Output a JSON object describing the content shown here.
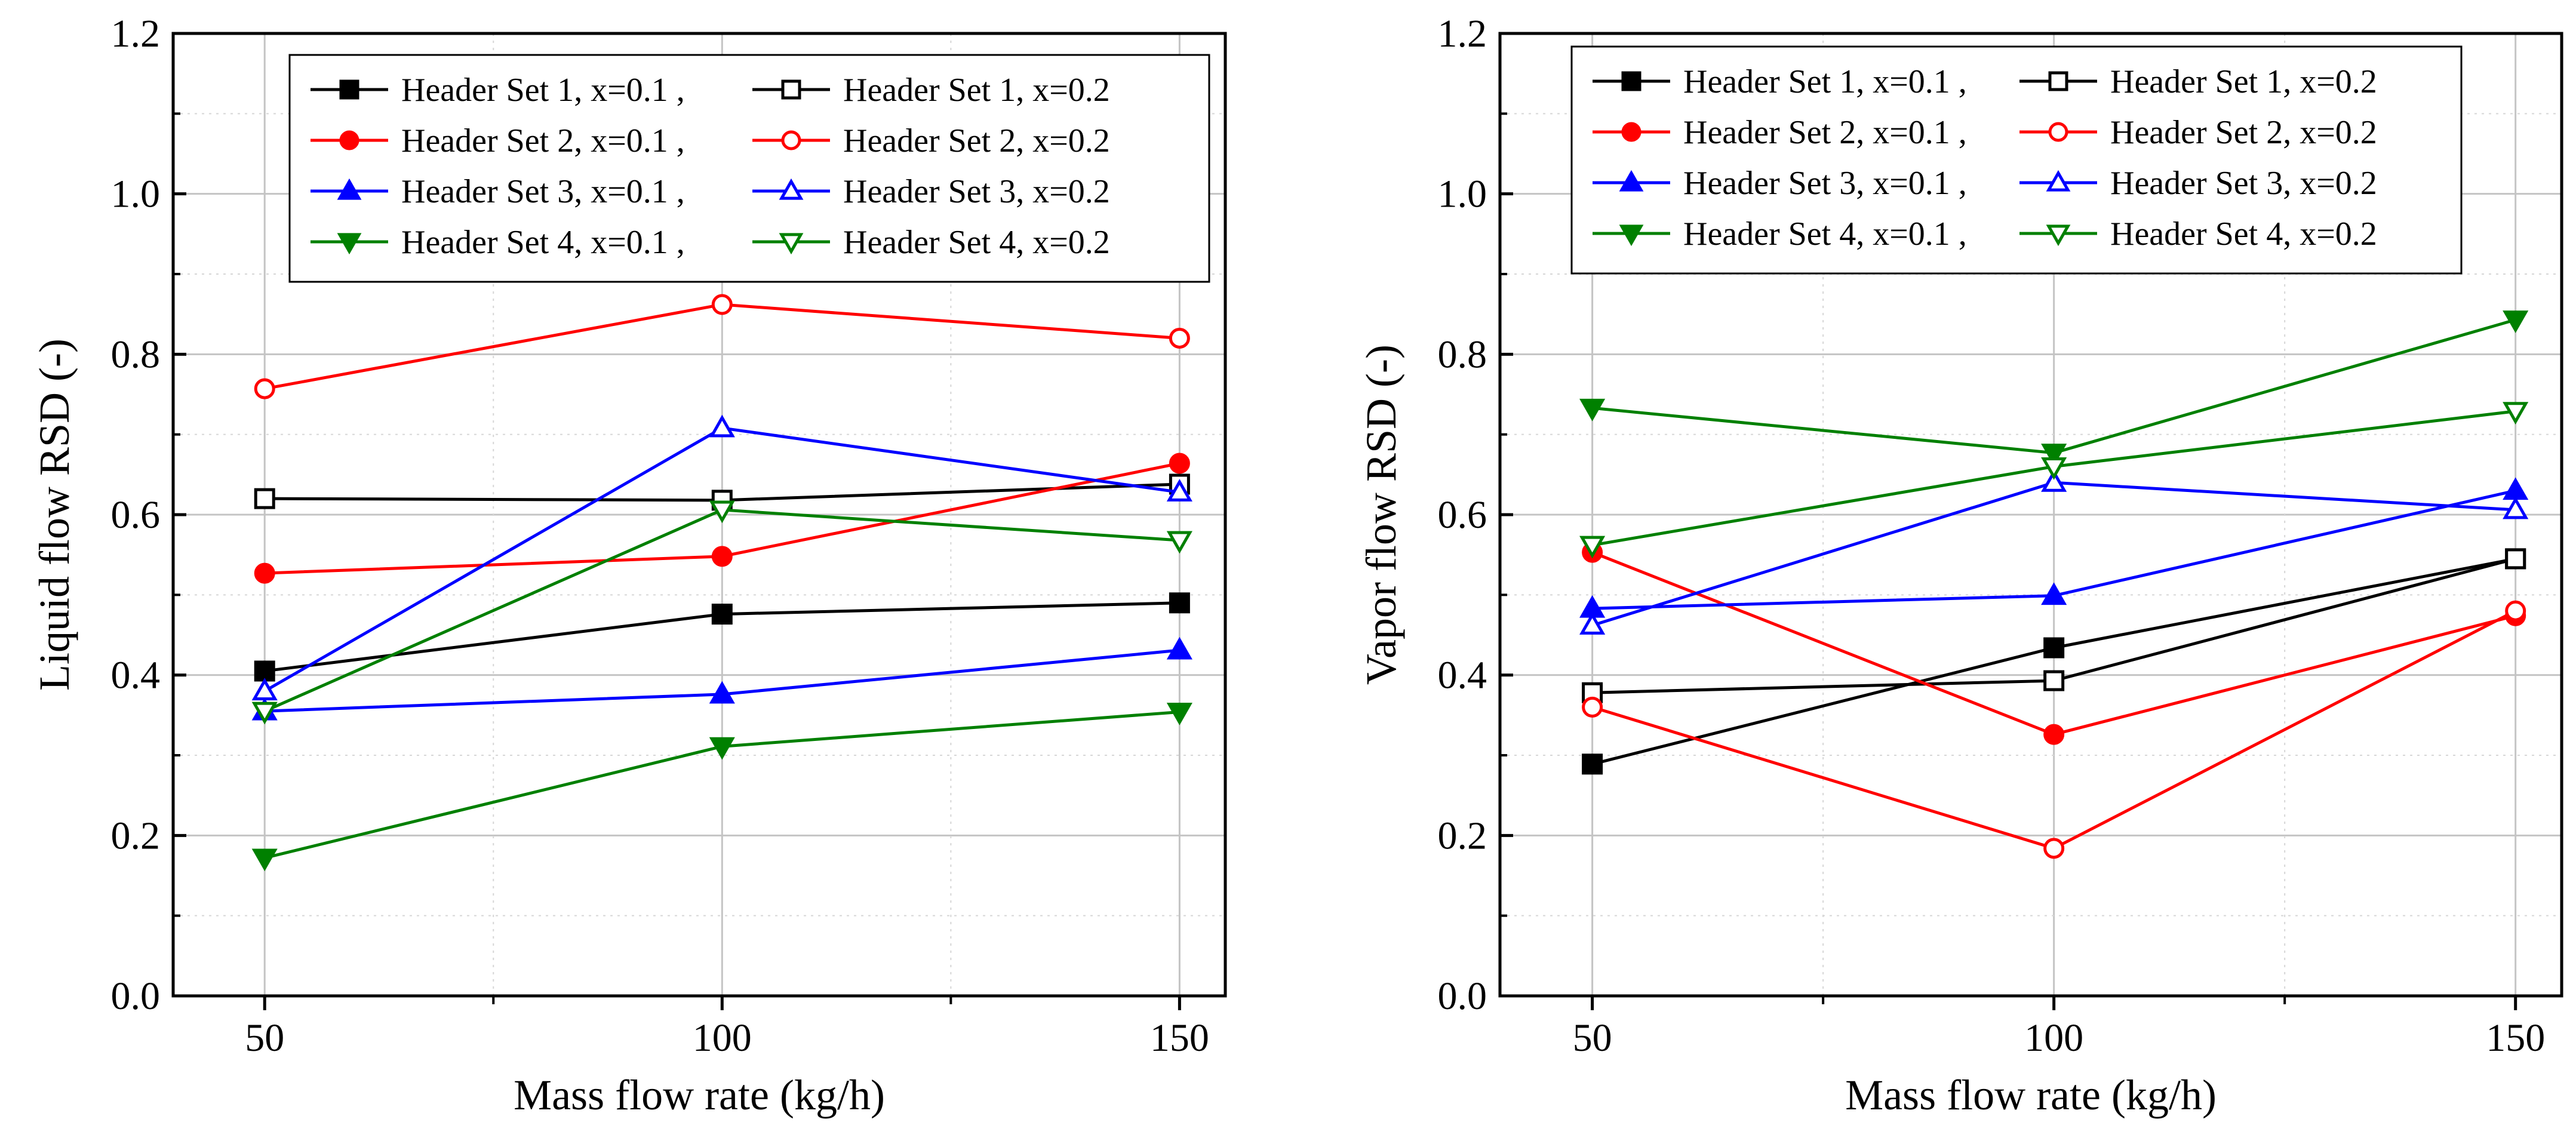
{
  "chart_data": [
    {
      "type": "line",
      "title": "",
      "xlabel": "Mass flow rate (kg/h)",
      "ylabel": "Liquid flow RSD (-)",
      "x": [
        50,
        100,
        150
      ],
      "xlim": [
        40,
        155
      ],
      "ylim": [
        0.0,
        1.2
      ],
      "xticks": [
        "50",
        "100",
        "150"
      ],
      "yticks": [
        "0.0",
        "0.2",
        "0.4",
        "0.6",
        "0.8",
        "1.0",
        "1.2"
      ],
      "grid": true,
      "legend_position": "top-right",
      "series": [
        {
          "name": "Header Set 1, x=0.1 ,",
          "color": "#000000",
          "marker": "square",
          "filled": true,
          "values": [
            0.405,
            0.476,
            0.49
          ]
        },
        {
          "name": "Header Set 1, x=0.2",
          "color": "#000000",
          "marker": "square",
          "filled": false,
          "values": [
            0.62,
            0.618,
            0.638
          ]
        },
        {
          "name": "Header Set 2, x=0.1 ,",
          "color": "#ff0000",
          "marker": "circle",
          "filled": true,
          "values": [
            0.527,
            0.548,
            0.664
          ]
        },
        {
          "name": "Header Set 2, x=0.2",
          "color": "#ff0000",
          "marker": "circle",
          "filled": false,
          "values": [
            0.757,
            0.862,
            0.82
          ]
        },
        {
          "name": "Header Set 3, x=0.1 ,",
          "color": "#0000ff",
          "marker": "triangle-up",
          "filled": true,
          "values": [
            0.355,
            0.376,
            0.431
          ]
        },
        {
          "name": "Header Set 3, x=0.2",
          "color": "#0000ff",
          "marker": "triangle-up",
          "filled": false,
          "values": [
            0.38,
            0.708,
            0.628
          ]
        },
        {
          "name": "Header Set 4, x=0.1 ,",
          "color": "#008000",
          "marker": "triangle-down",
          "filled": true,
          "values": [
            0.172,
            0.311,
            0.354
          ]
        },
        {
          "name": "Header Set 4, x=0.2",
          "color": "#008000",
          "marker": "triangle-down",
          "filled": false,
          "values": [
            0.355,
            0.606,
            0.568
          ]
        }
      ]
    },
    {
      "type": "line",
      "title": "",
      "xlabel": "Mass flow rate (kg/h)",
      "ylabel": "Vapor flow RSD (-)",
      "x": [
        50,
        100,
        150
      ],
      "xlim": [
        40,
        155
      ],
      "ylim": [
        0.0,
        1.2
      ],
      "xticks": [
        "50",
        "100",
        "150"
      ],
      "yticks": [
        "0.0",
        "0.2",
        "0.4",
        "0.6",
        "0.8",
        "1.0",
        "1.2"
      ],
      "grid": true,
      "legend_position": "top-right",
      "series": [
        {
          "name": "Header Set 1, x=0.1 ,",
          "color": "#000000",
          "marker": "square",
          "filled": true,
          "values": [
            0.289,
            0.434,
            0.545
          ]
        },
        {
          "name": "Header Set 1, x=0.2",
          "color": "#000000",
          "marker": "square",
          "filled": false,
          "values": [
            0.378,
            0.393,
            0.545
          ]
        },
        {
          "name": "Header Set 2, x=0.1 ,",
          "color": "#ff0000",
          "marker": "circle",
          "filled": true,
          "values": [
            0.553,
            0.326,
            0.474
          ]
        },
        {
          "name": "Header Set 2, x=0.2",
          "color": "#ff0000",
          "marker": "circle",
          "filled": false,
          "values": [
            0.36,
            0.184,
            0.48
          ]
        },
        {
          "name": "Header Set 3, x=0.1 ,",
          "color": "#0000ff",
          "marker": "triangle-up",
          "filled": true,
          "values": [
            0.483,
            0.499,
            0.63
          ]
        },
        {
          "name": "Header Set 3, x=0.2",
          "color": "#0000ff",
          "marker": "triangle-up",
          "filled": false,
          "values": [
            0.462,
            0.64,
            0.606
          ]
        },
        {
          "name": "Header Set 4, x=0.1 ,",
          "color": "#008000",
          "marker": "triangle-down",
          "filled": true,
          "values": [
            0.733,
            0.677,
            0.843
          ]
        },
        {
          "name": "Header Set 4, x=0.2",
          "color": "#008000",
          "marker": "triangle-down",
          "filled": false,
          "values": [
            0.562,
            0.66,
            0.729
          ]
        }
      ]
    }
  ]
}
